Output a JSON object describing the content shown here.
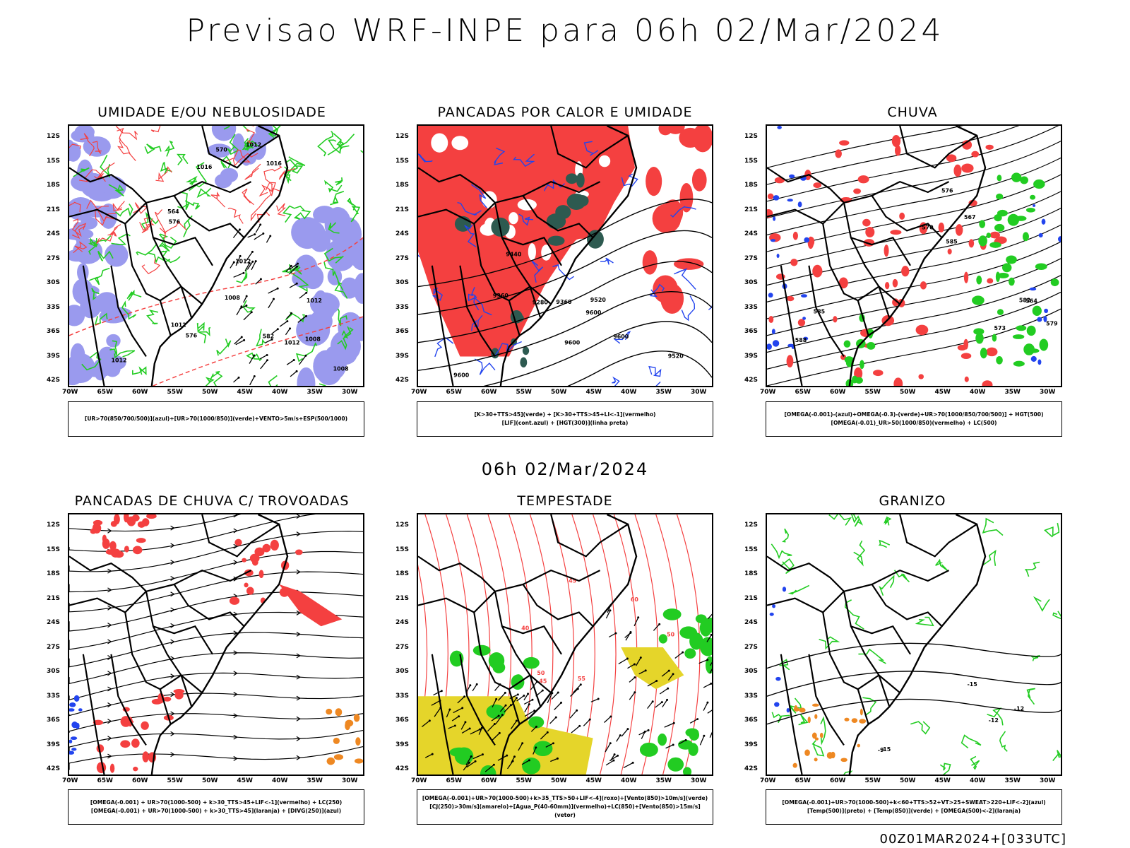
{
  "main_title": "Previsao WRF-INPE  para 06h 02/Mar/2024",
  "mid_title": "06h 02/Mar/2024",
  "footer": "00Z01MAR2024+[033UTC]",
  "axes": {
    "lat": [
      "12S",
      "15S",
      "18S",
      "21S",
      "24S",
      "27S",
      "30S",
      "33S",
      "36S",
      "39S",
      "42S"
    ],
    "lon": [
      "70W",
      "65W",
      "60W",
      "55W",
      "50W",
      "45W",
      "40W",
      "35W",
      "30W"
    ]
  },
  "colors": {
    "red": "#f44040",
    "green": "#22cc22",
    "blue": "#2244ee",
    "lavender": "#9a9aee",
    "teal": "#2d5a50",
    "yellow": "#e5d52a",
    "orange": "#ee8822",
    "black": "#000000"
  },
  "panels": [
    {
      "id": "p1",
      "title": "UMIDADE E/OU NEBULOSIDADE",
      "legend": [
        "[UR>70(850/700/500)](azul)+[UR>70(1000/850)](verde)+VENTO>5m/s+ESP(500/1000)"
      ],
      "contour_labels": [
        "1012",
        "1012",
        "1012",
        "1008",
        "1016",
        "1012",
        "1008",
        "1016",
        "1012",
        "1012",
        "1008",
        "576",
        "576",
        "570",
        "582",
        "564"
      ]
    },
    {
      "id": "p2",
      "title": "PANCADAS POR CALOR E UMIDADE",
      "legend": [
        "[K>30+TTS>45](verde) + [K>30+TTS>45+LI<-1](vermelho)",
        "[LIF](cont.azul) + [HGT(300)](linha preta)"
      ],
      "contour_labels": [
        "9600",
        "9520",
        "9440",
        "9360",
        "9600",
        "9520",
        "9600",
        "9360",
        "9280",
        "9600"
      ]
    },
    {
      "id": "p3",
      "title": "CHUVA",
      "legend": [
        "[OMEGA(-0.001)-(azul)+OMEGA(-0.3)-(verde)+UR>70(1000/850/700/500)] + HGT(500)",
        "[OMEGA(-0.01)_UR>50(1000/850)(vermelho) + LC(500)"
      ],
      "contour_labels": [
        "585",
        "585",
        "582",
        "579",
        "576",
        "573",
        "570",
        "567",
        "564",
        "588"
      ]
    },
    {
      "id": "p4",
      "title": "PANCADAS DE CHUVA C/ TROVOADAS",
      "legend": [
        "[OMEGA(-0.001) + UR>70(1000-500) + k>30_TTS>45+LIF<-1](vermelho) + LC(250)",
        "[OMEGA(-0.001) + UR>70(1000-500) + k>30_TTS>45](laranja) + [DIVG(250)](azul)"
      ],
      "contour_labels": []
    },
    {
      "id": "p5",
      "title": "TEMPESTADE",
      "legend": [
        "[OMEGA(-0.001)+UR>70(1000-500)+k>35_TTS>50+LIF<-4](roxo)+[Vento(850)>10m/s](verde)",
        "[CJ(250)>30m/s](amarelo)+[Agua_P(40-60mm)](vermelho)+LC(850)+[Vento(850)>15m/s](vetor)"
      ],
      "contour_labels": [
        "40",
        "45",
        "50",
        "55",
        "60",
        "50",
        "45"
      ]
    },
    {
      "id": "p6",
      "title": "GRANIZO",
      "legend": [
        "[OMEGA(-0.001)+UR>70(1000-500)+k<60+TTS>52+VT>25+SWEAT>220+LIF<-2](azul)",
        "[Temp(500)](preto) + [Temp(850)](verde) + [OMEGA(500)<-2](laranja)"
      ],
      "contour_labels": [
        "-12",
        "-15",
        "-15",
        "-12",
        "-9"
      ]
    }
  ]
}
